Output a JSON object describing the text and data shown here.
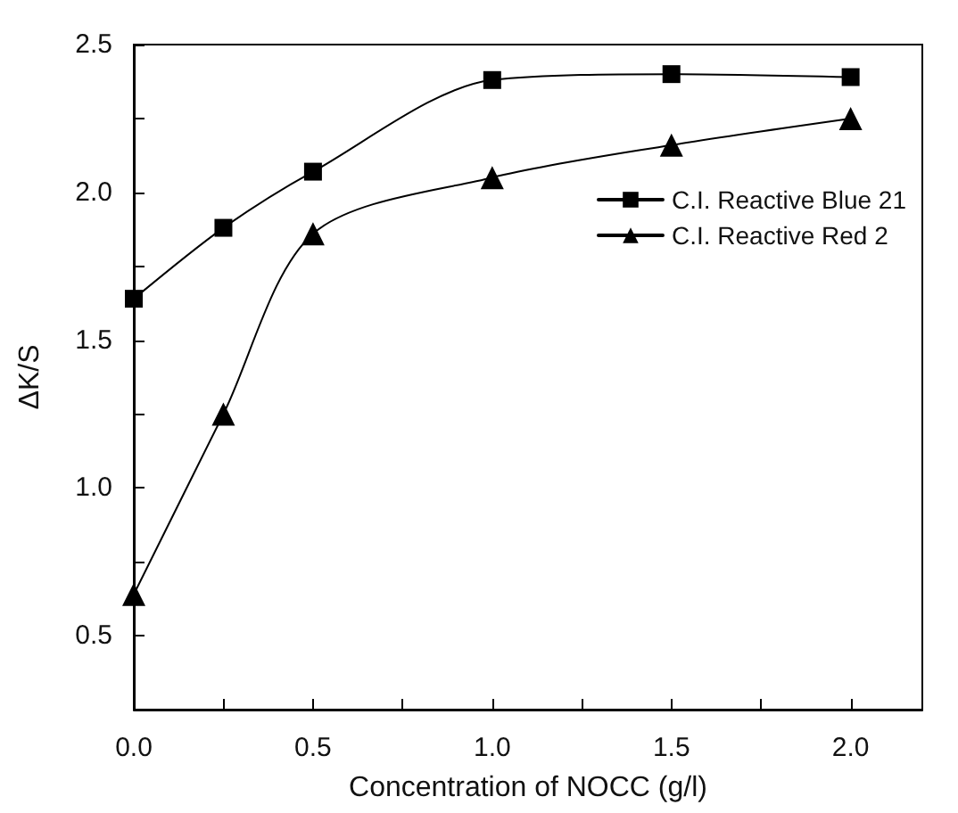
{
  "chart_data": {
    "type": "line",
    "xlabel": "Concentration of NOCC (g/l)",
    "ylabel": "ΔK/S",
    "x": [
      0,
      0.25,
      0.5,
      1.0,
      1.5,
      2.0
    ],
    "series": [
      {
        "name": "C.I. Reactive Blue 21",
        "color": "#000000",
        "marker": "square",
        "values": [
          1.64,
          1.88,
          2.07,
          2.38,
          2.4,
          2.39
        ]
      },
      {
        "name": "C.I. Reactive Red 2",
        "color": "#000000",
        "marker": "triangle",
        "values": [
          0.64,
          1.25,
          1.86,
          2.05,
          2.16,
          2.25
        ]
      }
    ],
    "xlim": [
      0,
      2.2
    ],
    "xticks": [
      {
        "value": 0,
        "label": "0.0"
      },
      0.5,
      {
        "value": 1,
        "label": "1.0"
      },
      1.5,
      {
        "value": 2,
        "label": "2.0"
      }
    ],
    "ylim": [
      0.25,
      2.5
    ],
    "yticks": [
      0.5,
      {
        "value": 1,
        "label": "1.0"
      },
      1.5,
      {
        "value": 2,
        "label": "2.0"
      },
      2.5
    ],
    "grid": false,
    "legend": "top right",
    "line_style": "solid"
  }
}
